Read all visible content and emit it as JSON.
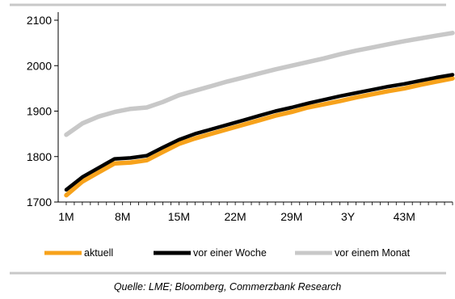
{
  "chart_data": {
    "type": "line",
    "x_tick_labels": [
      "1M",
      "8M",
      "15M",
      "22M",
      "29M",
      "3Y",
      "43M"
    ],
    "ylim": [
      1700,
      2100
    ],
    "y_ticks": [
      1700,
      1800,
      1900,
      2000,
      2100
    ],
    "grid": false,
    "legend_placement": "bottom",
    "series": [
      {
        "name": "aktuell",
        "color": "#f7a21b",
        "x": [
          1,
          3,
          5,
          7,
          9,
          11,
          13,
          15,
          17,
          19,
          21,
          23,
          25,
          27,
          29,
          31,
          33,
          35,
          37,
          39,
          41,
          43,
          45,
          47,
          49
        ],
        "values": [
          1715,
          1745,
          1765,
          1785,
          1787,
          1792,
          1810,
          1828,
          1840,
          1850,
          1860,
          1870,
          1880,
          1890,
          1898,
          1908,
          1915,
          1922,
          1930,
          1937,
          1944,
          1950,
          1958,
          1965,
          1972
        ]
      },
      {
        "name": "vor einer Woche",
        "color": "#000000",
        "x": [
          1,
          3,
          5,
          7,
          9,
          11,
          13,
          15,
          17,
          19,
          21,
          23,
          25,
          27,
          29,
          31,
          33,
          35,
          37,
          39,
          41,
          43,
          45,
          47,
          49
        ],
        "values": [
          1727,
          1755,
          1775,
          1795,
          1797,
          1802,
          1820,
          1837,
          1850,
          1860,
          1870,
          1880,
          1890,
          1900,
          1908,
          1917,
          1925,
          1933,
          1940,
          1947,
          1954,
          1960,
          1967,
          1974,
          1980
        ]
      },
      {
        "name": "vor einem Monat",
        "color": "#c8c8c8",
        "x": [
          1,
          3,
          5,
          7,
          9,
          11,
          13,
          15,
          17,
          19,
          21,
          23,
          25,
          27,
          29,
          31,
          33,
          35,
          37,
          39,
          41,
          43,
          45,
          47,
          49
        ],
        "values": [
          1848,
          1873,
          1888,
          1898,
          1905,
          1908,
          1920,
          1935,
          1945,
          1955,
          1965,
          1974,
          1983,
          1992,
          2000,
          2008,
          2016,
          2025,
          2033,
          2040,
          2047,
          2054,
          2060,
          2066,
          2072
        ]
      }
    ]
  },
  "source": "Quelle: LME; Bloomberg, Commerzbank Research"
}
